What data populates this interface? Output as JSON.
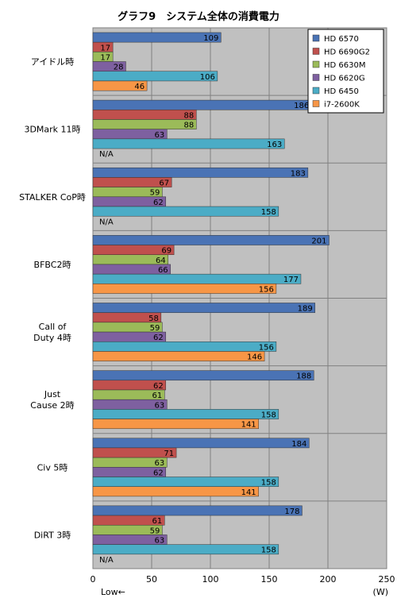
{
  "chart_data": {
    "type": "bar",
    "orientation": "horizontal",
    "title": "グラフ9　システム全体の消費電力",
    "xlabel": "",
    "unit_label": "(W)",
    "direction_label": "Low←",
    "xlim": [
      0,
      250
    ],
    "x_ticks": [
      0,
      50,
      100,
      150,
      200,
      250
    ],
    "grid": true,
    "legend_position": "top-right",
    "na_text": "N/A",
    "categories": [
      [
        "アイドル時"
      ],
      [
        "3DMark 11時"
      ],
      [
        "STALKER  CoP時"
      ],
      [
        "BFBC2時"
      ],
      [
        "Call of",
        "Duty  4時"
      ],
      [
        "Just",
        "Cause 2時"
      ],
      [
        "Civ 5時"
      ],
      [
        "DiRT 3時"
      ]
    ],
    "series": [
      {
        "name": "HD 6570",
        "color": "#4a73b5",
        "values": [
          109,
          186,
          183,
          201,
          189,
          188,
          184,
          178
        ]
      },
      {
        "name": "HD 6690G2",
        "color": "#c0504d",
        "values": [
          17,
          88,
          67,
          69,
          58,
          62,
          71,
          61
        ]
      },
      {
        "name": "HD 6630M",
        "color": "#9bbb59",
        "values": [
          17,
          88,
          59,
          64,
          59,
          61,
          63,
          59
        ]
      },
      {
        "name": "HD 6620G",
        "color": "#7e60a0",
        "values": [
          28,
          63,
          62,
          66,
          62,
          63,
          62,
          63
        ]
      },
      {
        "name": "HD 6450",
        "color": "#4bacc6",
        "values": [
          106,
          163,
          158,
          177,
          156,
          158,
          158,
          158
        ]
      },
      {
        "name": "i7-2600K",
        "color": "#f79646",
        "values": [
          46,
          null,
          null,
          156,
          146,
          141,
          141,
          null
        ]
      }
    ]
  }
}
